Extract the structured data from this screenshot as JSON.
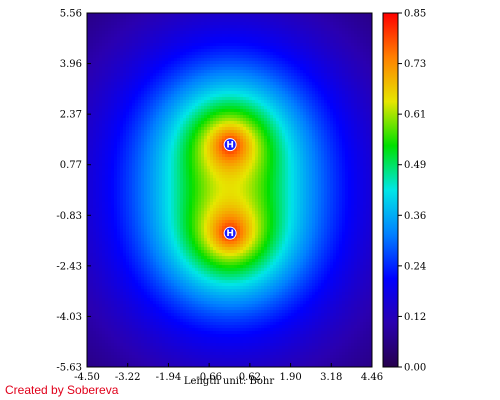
{
  "credit_text": "Created by Sobereva",
  "chart_data": {
    "type": "heatmap",
    "title": "",
    "xlabel": "Length unit: Bohr",
    "ylabel": "",
    "xlim": [
      -4.5,
      4.46
    ],
    "ylim": [
      -5.63,
      5.56
    ],
    "x_ticks": [
      "-4.50",
      "-3.22",
      "-1.94",
      "-0.66",
      "0.62",
      "1.90",
      "3.18",
      "4.46"
    ],
    "y_ticks": [
      "-5.63",
      "-4.03",
      "-2.43",
      "-0.83",
      "0.77",
      "2.37",
      "3.96",
      "5.56"
    ],
    "colorbar": {
      "range": [
        0.0,
        0.85
      ],
      "ticks": [
        "0.00",
        "0.12",
        "0.24",
        "0.36",
        "0.49",
        "0.61",
        "0.73",
        "0.85"
      ],
      "colors": [
        "#26004d",
        "#2a00b0",
        "#0000ff",
        "#0080ff",
        "#00e6e6",
        "#00e000",
        "#e6e600",
        "#ff8000",
        "#ff0000"
      ]
    },
    "atoms": [
      {
        "label": "H",
        "x": 0.0,
        "y": 1.4
      },
      {
        "label": "H",
        "x": 0.0,
        "y": -1.4
      }
    ],
    "field_peak": 0.85
  }
}
